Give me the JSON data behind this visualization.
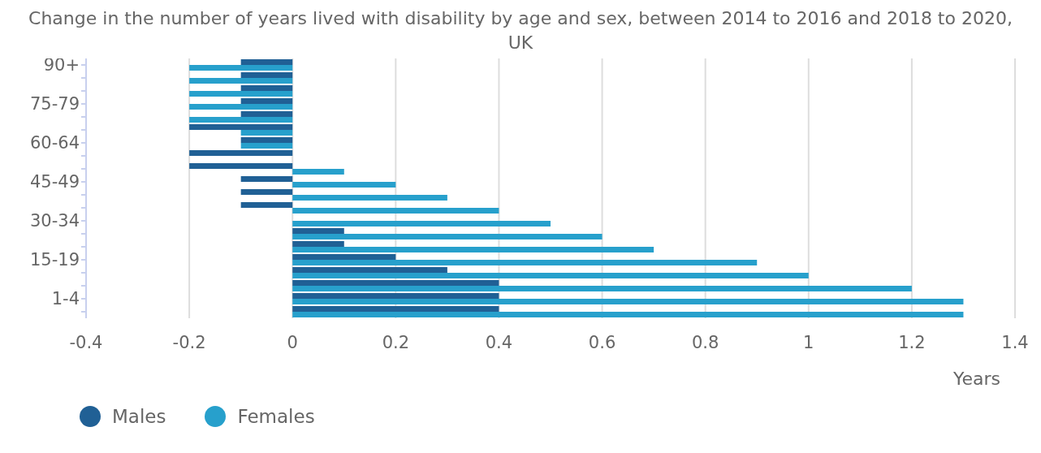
{
  "chart_data": {
    "type": "bar",
    "orientation": "horizontal",
    "title": "Change in the number of years lived with disability by age and sex, between 2014 to 2016 and 2018 to 2020, UK",
    "xlabel": "Years",
    "categories": [
      "90+",
      null,
      null,
      "75-79",
      null,
      null,
      "60-64",
      null,
      null,
      "45-49",
      null,
      null,
      "30-34",
      null,
      null,
      "15-19",
      null,
      null,
      "1-4",
      null
    ],
    "series": [
      {
        "name": "Males",
        "color": "#206095",
        "values": [
          -0.1,
          -0.1,
          -0.1,
          -0.1,
          -0.1,
          -0.2,
          -0.1,
          -0.2,
          -0.2,
          -0.1,
          -0.1,
          -0.1,
          0,
          0.1,
          0.1,
          0.2,
          0.3,
          0.4,
          0.4,
          0.4
        ]
      },
      {
        "name": "Females",
        "color": "#27a0cc",
        "values": [
          -0.2,
          -0.2,
          -0.2,
          -0.2,
          -0.2,
          -0.1,
          -0.1,
          0,
          0.1,
          0.2,
          0.3,
          0.4,
          0.5,
          0.6,
          0.7,
          0.9,
          1.0,
          1.2,
          1.3,
          1.3
        ]
      }
    ],
    "xlim": [
      -0.4,
      1.4
    ],
    "xticks": [
      -0.4,
      -0.2,
      0,
      0.2,
      0.4,
      0.6,
      0.8,
      1,
      1.2,
      1.4
    ],
    "grid": "x",
    "legend": "bottom left"
  }
}
